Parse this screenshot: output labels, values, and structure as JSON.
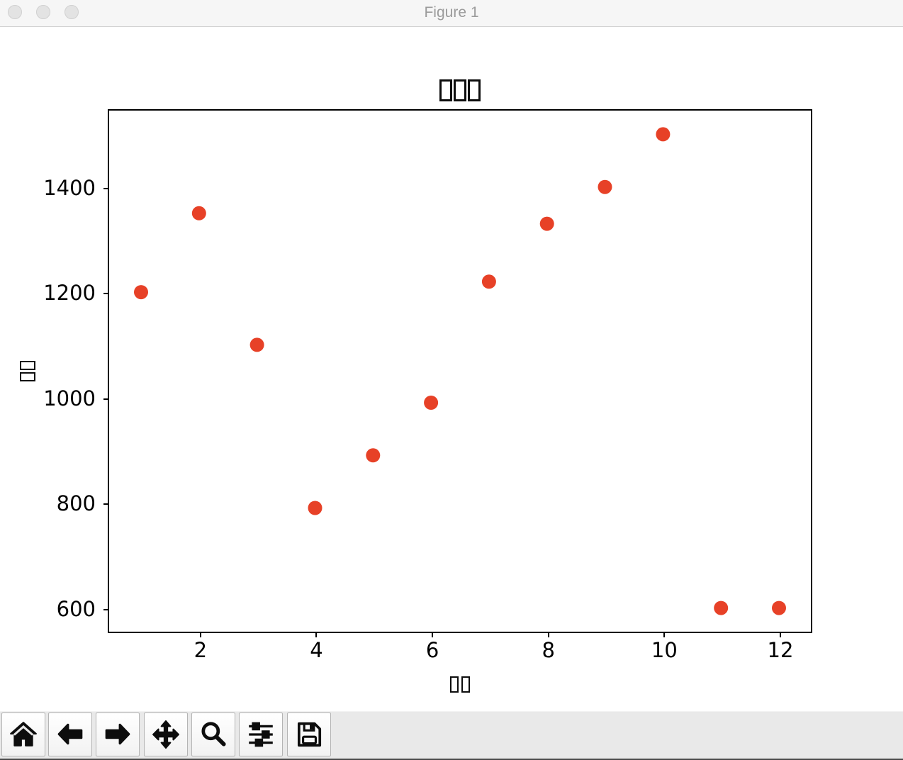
{
  "window": {
    "title": "Figure 1",
    "controls": [
      {
        "name": "close"
      },
      {
        "name": "minimize"
      },
      {
        "name": "maximize"
      }
    ]
  },
  "toolbar": {
    "buttons": [
      {
        "name": "home",
        "icon": "home-icon"
      },
      {
        "name": "back",
        "icon": "arrow-left-icon"
      },
      {
        "name": "forward",
        "icon": "arrow-right-icon"
      },
      {
        "name": "pan",
        "icon": "move-arrows-icon"
      },
      {
        "name": "zoom-to-rect",
        "icon": "magnifier-icon"
      },
      {
        "name": "configure-subplots",
        "icon": "sliders-icon"
      },
      {
        "name": "save",
        "icon": "floppy-disk-icon"
      }
    ]
  },
  "chart_data": {
    "type": "scatter",
    "title_missing_glyph_boxes": 3,
    "xlabel_missing_glyph_boxes": 2,
    "ylabel_missing_glyph_boxes": 2,
    "note": "title and axis labels are CJK glyphs rendered as empty tofu boxes",
    "x": [
      1,
      2,
      3,
      4,
      5,
      6,
      7,
      8,
      9,
      10,
      11,
      12
    ],
    "y": [
      1200,
      1350,
      1100,
      790,
      890,
      990,
      1220,
      1330,
      1400,
      1500,
      600,
      600
    ],
    "xticks": [
      2,
      4,
      6,
      8,
      10,
      12
    ],
    "yticks": [
      600,
      800,
      1000,
      1200,
      1400
    ],
    "xlim": [
      0.45,
      12.55
    ],
    "ylim": [
      555,
      1545
    ],
    "marker_color": "#e74127",
    "marker_radius_px": 10,
    "grid": false,
    "legend": null
  }
}
